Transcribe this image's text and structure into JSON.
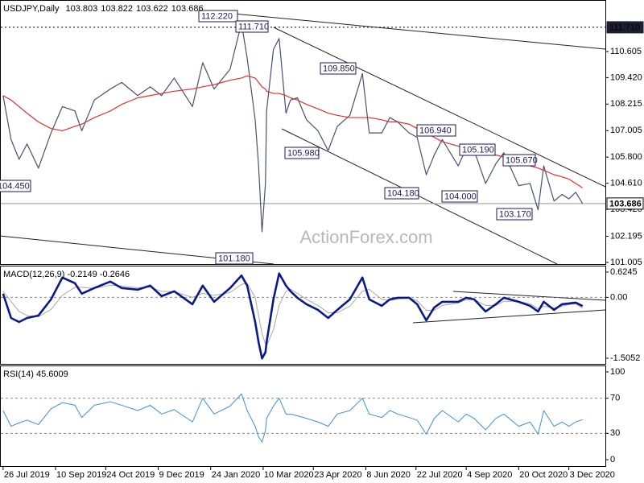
{
  "chart_data": [
    {
      "type": "line",
      "title": "USDJPY,Daily",
      "ohlc": [
        "103.803",
        "103.822",
        "103.622",
        "103.686"
      ],
      "watermark": "ActionForex.com",
      "x": [
        "26 Jul 2019",
        "2 Aug 2019",
        "9 Aug 2019",
        "16 Aug 2019",
        "26 Aug 2019",
        "6 Sep 2019",
        "16 Sep 2019",
        "27 Sep 2019",
        "3 Oct 2019",
        "14 Oct 2019",
        "28 Oct 2019",
        "7 Nov 2019",
        "21 Nov 2019",
        "2 Dec 2019",
        "12 Dec 2019",
        "23 Dec 2019",
        "8 Jan 2020",
        "17 Jan 2020",
        "27 Jan 2020",
        "10 Feb 2020",
        "20 Feb 2020",
        "25 Feb 2020",
        "3 Mar 2020",
        "6 Mar 2020",
        "9 Mar 2020",
        "12 Mar 2020",
        "13 Mar 2020",
        "19 Mar 2020",
        "24 Mar 2020",
        "30 Mar 2020",
        "3 Apr 2020",
        "9 Apr 2020",
        "17 Apr 2020",
        "27 Apr 2020",
        "6 May 2020",
        "14 May 2020",
        "25 May 2020",
        "5 Jun 2020",
        "11 Jun 2020",
        "22 Jun 2020",
        "29 Jun 2020",
        "6 Jul 2020",
        "16 Jul 2020",
        "23 Jul 2020",
        "31 Jul 2020",
        "7 Aug 2020",
        "14 Aug 2020",
        "28 Aug 2020",
        "4 Sep 2020",
        "11 Sep 2020",
        "21 Sep 2020",
        "30 Sep 2020",
        "7 Oct 2020",
        "20 Oct 2020",
        "30 Oct 2020",
        "6 Nov 2020",
        "11 Nov 2020",
        "20 Nov 2020",
        "27 Nov 2020",
        "3 Dec 2020",
        "9 Dec 2020",
        "15 Dec 2020"
      ],
      "series": [
        {
          "color": "#45536e",
          "width": 1.2,
          "values": [
            108.6,
            106.6,
            105.7,
            106.4,
            105.3,
            106.9,
            108.1,
            107.9,
            107.0,
            108.4,
            108.9,
            109.2,
            108.6,
            109.0,
            108.6,
            109.4,
            108.1,
            110.1,
            108.9,
            109.8,
            111.9,
            110.3,
            107.5,
            105.4,
            102.4,
            104.6,
            107.9,
            110.7,
            111.2,
            107.8,
            108.4,
            108.5,
            107.5,
            107.0,
            106.1,
            107.2,
            107.7,
            109.6,
            106.9,
            106.9,
            107.6,
            107.4,
            106.9,
            106.7,
            105.0,
            105.9,
            106.6,
            105.4,
            106.2,
            106.1,
            104.6,
            105.5,
            106.0,
            104.5,
            104.6,
            103.4,
            105.4,
            103.8,
            104.1,
            103.9,
            104.2,
            103.686
          ]
        },
        {
          "color": "#e0302c",
          "width": 1.2,
          "values": [
            108.6,
            108.4,
            108.1,
            107.8,
            107.4,
            107.1,
            107.0,
            107.2,
            107.3,
            107.6,
            107.9,
            108.2,
            108.5,
            108.6,
            108.7,
            108.8,
            108.9,
            109.0,
            109.1,
            109.3,
            109.4,
            109.5,
            109.4,
            109.2,
            109.0,
            108.9,
            108.8,
            108.7,
            108.7,
            108.6,
            108.5,
            108.4,
            108.2,
            108.0,
            107.8,
            107.7,
            107.6,
            107.6,
            107.6,
            107.5,
            107.4,
            107.4,
            107.3,
            107.1,
            106.9,
            106.7,
            106.5,
            106.3,
            106.2,
            106.1,
            106.0,
            105.9,
            105.8,
            105.6,
            105.4,
            105.3,
            105.2,
            105.0,
            104.9,
            104.8,
            104.6,
            104.4
          ]
        }
      ],
      "xlim": [
        "24 Jul 2019",
        "4 Jan 2021"
      ],
      "ylim": [
        100.932,
        112.916
      ],
      "yticks": [
        110.605,
        {
          "value": 109.42,
          "label": "109.420"
        },
        108.215,
        107.005,
        {
          "value": 105.8,
          "label": "105.800"
        },
        {
          "value": 104.61,
          "label": "104.610"
        },
        {
          "value": 103.42,
          "label": "103.420"
        },
        102.195,
        101.005
      ],
      "price_tags": [
        {
          "value": 111.71,
          "label": "111.710",
          "color": "#1e1e32",
          "dashed": true
        },
        {
          "value": 103.686,
          "label": "103.686",
          "color": "#ffffff",
          "dashed": false
        }
      ],
      "annotations": [
        "112.220",
        "111.710",
        "109.850",
        "105.980",
        "106.940",
        "104.180",
        "104.000",
        "105.190",
        "105.670",
        "103.170",
        "104.450",
        "101.180"
      ]
    },
    {
      "type": "line",
      "title": "MACD(12,26,9) -0.2149 -0.2646",
      "x": [
        "26 Jul 2019",
        "2 Aug 2019",
        "9 Aug 2019",
        "16 Aug 2019",
        "26 Aug 2019",
        "6 Sep 2019",
        "16 Sep 2019",
        "27 Sep 2019",
        "3 Oct 2019",
        "14 Oct 2019",
        "28 Oct 2019",
        "7 Nov 2019",
        "21 Nov 2019",
        "2 Dec 2019",
        "12 Dec 2019",
        "23 Dec 2019",
        "8 Jan 2020",
        "17 Jan 2020",
        "27 Jan 2020",
        "10 Feb 2020",
        "20 Feb 2020",
        "25 Feb 2020",
        "3 Mar 2020",
        "6 Mar 2020",
        "9 Mar 2020",
        "12 Mar 2020",
        "13 Mar 2020",
        "19 Mar 2020",
        "24 Mar 2020",
        "30 Mar 2020",
        "3 Apr 2020",
        "9 Apr 2020",
        "17 Apr 2020",
        "27 Apr 2020",
        "6 May 2020",
        "14 May 2020",
        "25 May 2020",
        "5 Jun 2020",
        "11 Jun 2020",
        "22 Jun 2020",
        "29 Jun 2020",
        "6 Jul 2020",
        "16 Jul 2020",
        "23 Jul 2020",
        "31 Jul 2020",
        "7 Aug 2020",
        "14 Aug 2020",
        "28 Aug 2020",
        "4 Sep 2020",
        "11 Sep 2020",
        "21 Sep 2020",
        "30 Sep 2020",
        "7 Oct 2020",
        "20 Oct 2020",
        "30 Oct 2020",
        "6 Nov 2020",
        "11 Nov 2020",
        "20 Nov 2020",
        "27 Nov 2020",
        "3 Dec 2020",
        "9 Dec 2020",
        "15 Dec 2020"
      ],
      "series": [
        {
          "color": "#a8a8a8",
          "width": 1,
          "values": [
            0.15,
            -0.1,
            -0.35,
            -0.45,
            -0.48,
            -0.3,
            0.05,
            0.25,
            0.25,
            0.22,
            0.3,
            0.28,
            0.24,
            0.25,
            0.15,
            0.14,
            0.0,
            0.1,
            0.05,
            0.12,
            0.32,
            0.35,
            0.0,
            -0.45,
            -0.9,
            -1.15,
            -1.2,
            -0.8,
            -0.2,
            0.15,
            0.2,
            0.1,
            -0.05,
            -0.2,
            -0.38,
            -0.38,
            -0.22,
            0.15,
            0.2,
            -0.05,
            -0.08,
            -0.04,
            -0.02,
            -0.08,
            -0.32,
            -0.32,
            -0.2,
            -0.14,
            -0.06,
            -0.05,
            -0.2,
            -0.2,
            -0.1,
            -0.1,
            -0.16,
            -0.28,
            -0.22,
            -0.26,
            -0.22,
            -0.18,
            -0.16,
            -0.2646
          ]
        },
        {
          "color": "#0b1a8a",
          "width": 2.6,
          "values": [
            0.09,
            -0.51,
            -0.61,
            -0.51,
            -0.45,
            -0.05,
            0.49,
            0.35,
            0.09,
            0.23,
            0.39,
            0.23,
            0.19,
            0.29,
            0.03,
            0.15,
            -0.17,
            0.29,
            -0.11,
            0.23,
            0.54,
            0.29,
            -0.61,
            -1.11,
            -1.51,
            -1.36,
            -1.11,
            -0.05,
            0.59,
            0.29,
            0.15,
            -0.01,
            -0.17,
            -0.31,
            -0.51,
            -0.31,
            -0.05,
            0.49,
            -0.05,
            -0.21,
            -0.05,
            -0.01,
            -0.01,
            -0.17,
            -0.57,
            -0.25,
            -0.11,
            -0.11,
            -0.01,
            -0.05,
            -0.35,
            -0.17,
            -0.01,
            -0.11,
            -0.21,
            -0.35,
            -0.11,
            -0.31,
            -0.17,
            -0.15,
            -0.13,
            -0.2149
          ]
        }
      ],
      "xlim": [
        "24 Jul 2019",
        "4 Jan 2021"
      ],
      "ylim": [
        -1.645,
        0.764
      ],
      "yticks": [
        0.6245,
        {
          "value": 0,
          "label": "0.00"
        },
        -1.5052
      ],
      "grid_levels": [
        0
      ]
    },
    {
      "type": "line",
      "title": "RSI(14) 45.6009",
      "x": [
        "26 Jul 2019",
        "2 Aug 2019",
        "9 Aug 2019",
        "16 Aug 2019",
        "26 Aug 2019",
        "6 Sep 2019",
        "16 Sep 2019",
        "27 Sep 2019",
        "3 Oct 2019",
        "14 Oct 2019",
        "28 Oct 2019",
        "7 Nov 2019",
        "21 Nov 2019",
        "2 Dec 2019",
        "12 Dec 2019",
        "23 Dec 2019",
        "8 Jan 2020",
        "17 Jan 2020",
        "27 Jan 2020",
        "10 Feb 2020",
        "20 Feb 2020",
        "25 Feb 2020",
        "3 Mar 2020",
        "6 Mar 2020",
        "9 Mar 2020",
        "12 Mar 2020",
        "13 Mar 2020",
        "19 Mar 2020",
        "24 Mar 2020",
        "30 Mar 2020",
        "3 Apr 2020",
        "9 Apr 2020",
        "17 Apr 2020",
        "27 Apr 2020",
        "6 May 2020",
        "14 May 2020",
        "25 May 2020",
        "5 Jun 2020",
        "11 Jun 2020",
        "22 Jun 2020",
        "29 Jun 2020",
        "6 Jul 2020",
        "16 Jul 2020",
        "23 Jul 2020",
        "31 Jul 2020",
        "7 Aug 2020",
        "14 Aug 2020",
        "28 Aug 2020",
        "4 Sep 2020",
        "11 Sep 2020",
        "21 Sep 2020",
        "30 Sep 2020",
        "7 Oct 2020",
        "20 Oct 2020",
        "30 Oct 2020",
        "6 Nov 2020",
        "11 Nov 2020",
        "20 Nov 2020",
        "27 Nov 2020",
        "3 Dec 2020",
        "9 Dec 2020",
        "15 Dec 2020"
      ],
      "series": [
        {
          "color": "#3d8fd6",
          "width": 1,
          "values": [
            56,
            38,
            42,
            45,
            40,
            58,
            65,
            62,
            48,
            62,
            66,
            62,
            56,
            62,
            52,
            57,
            43,
            70,
            52,
            61,
            75,
            56,
            38,
            26,
            20,
            33,
            47,
            61,
            70,
            52,
            52,
            50,
            47,
            43,
            38,
            52,
            56,
            70,
            52,
            48,
            56,
            52,
            48,
            45,
            29,
            47,
            56,
            43,
            52,
            47,
            34,
            47,
            52,
            38,
            43,
            29,
            56,
            38,
            43,
            38,
            43,
            45.6009
          ]
        }
      ],
      "xlim": [
        "24 Jul 2019",
        "4 Jan 2021"
      ],
      "ylim": [
        -7.3,
        106.4
      ],
      "yticks": [
        100,
        70,
        30,
        0
      ],
      "grid_levels": [
        70,
        30
      ],
      "xticks": [
        "26 Jul 2019",
        "10 Sep 2019",
        "24 Oct 2019",
        "9 Dec 2019",
        "24 Jan 2020",
        "10 Mar 2020",
        "23 Apr 2020",
        "8 Jun 2020",
        "22 Jul 2020",
        "4 Sep 2020",
        "20 Oct 2020",
        "3 Dec 2020"
      ]
    }
  ]
}
